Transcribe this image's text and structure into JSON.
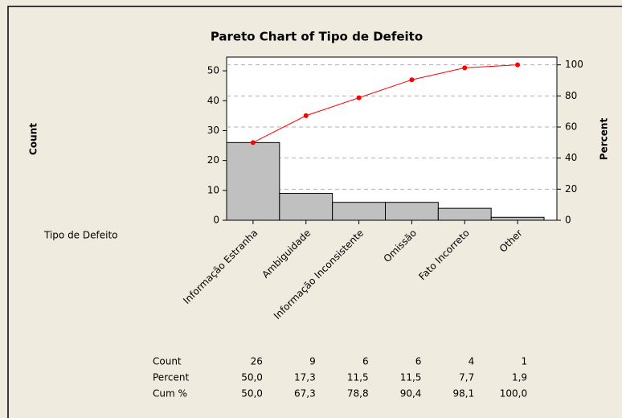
{
  "chart_data": {
    "type": "pareto",
    "title": "Pareto Chart of Tipo de Defeito",
    "ylabel": "Count",
    "y2label": "Percent",
    "xlabel": "Tipo de Defeito",
    "categories": [
      "Informação Estranha",
      "Ambiguidade",
      "Informação Inconsistente",
      "Omissão",
      "Fato Incorreto",
      "Other"
    ],
    "series": [
      {
        "name": "Count",
        "color": "#c0c0c0",
        "values": [
          26,
          9,
          6,
          6,
          4,
          1
        ]
      },
      {
        "name": "Percent",
        "values": [
          50.0,
          17.3,
          11.5,
          11.5,
          7.7,
          1.9
        ],
        "value_labels": [
          "50,0",
          "17,3",
          "11,5",
          "11,5",
          "7,7",
          "1,9"
        ]
      },
      {
        "name": "Cum %",
        "color": "#ff0000",
        "axis": "y2",
        "values": [
          50.0,
          67.3,
          78.8,
          90.4,
          98.1,
          100.0
        ],
        "value_labels": [
          "50,0",
          "67,3",
          "78,8",
          "90,4",
          "98,1",
          "100,0"
        ]
      }
    ],
    "ylim": [
      0,
      54.6
    ],
    "yticks": [
      0,
      10,
      20,
      30,
      40,
      50
    ],
    "y2lim": [
      0,
      105
    ],
    "y2ticks": [
      0,
      20,
      40,
      60,
      80,
      100
    ],
    "grid": true
  }
}
